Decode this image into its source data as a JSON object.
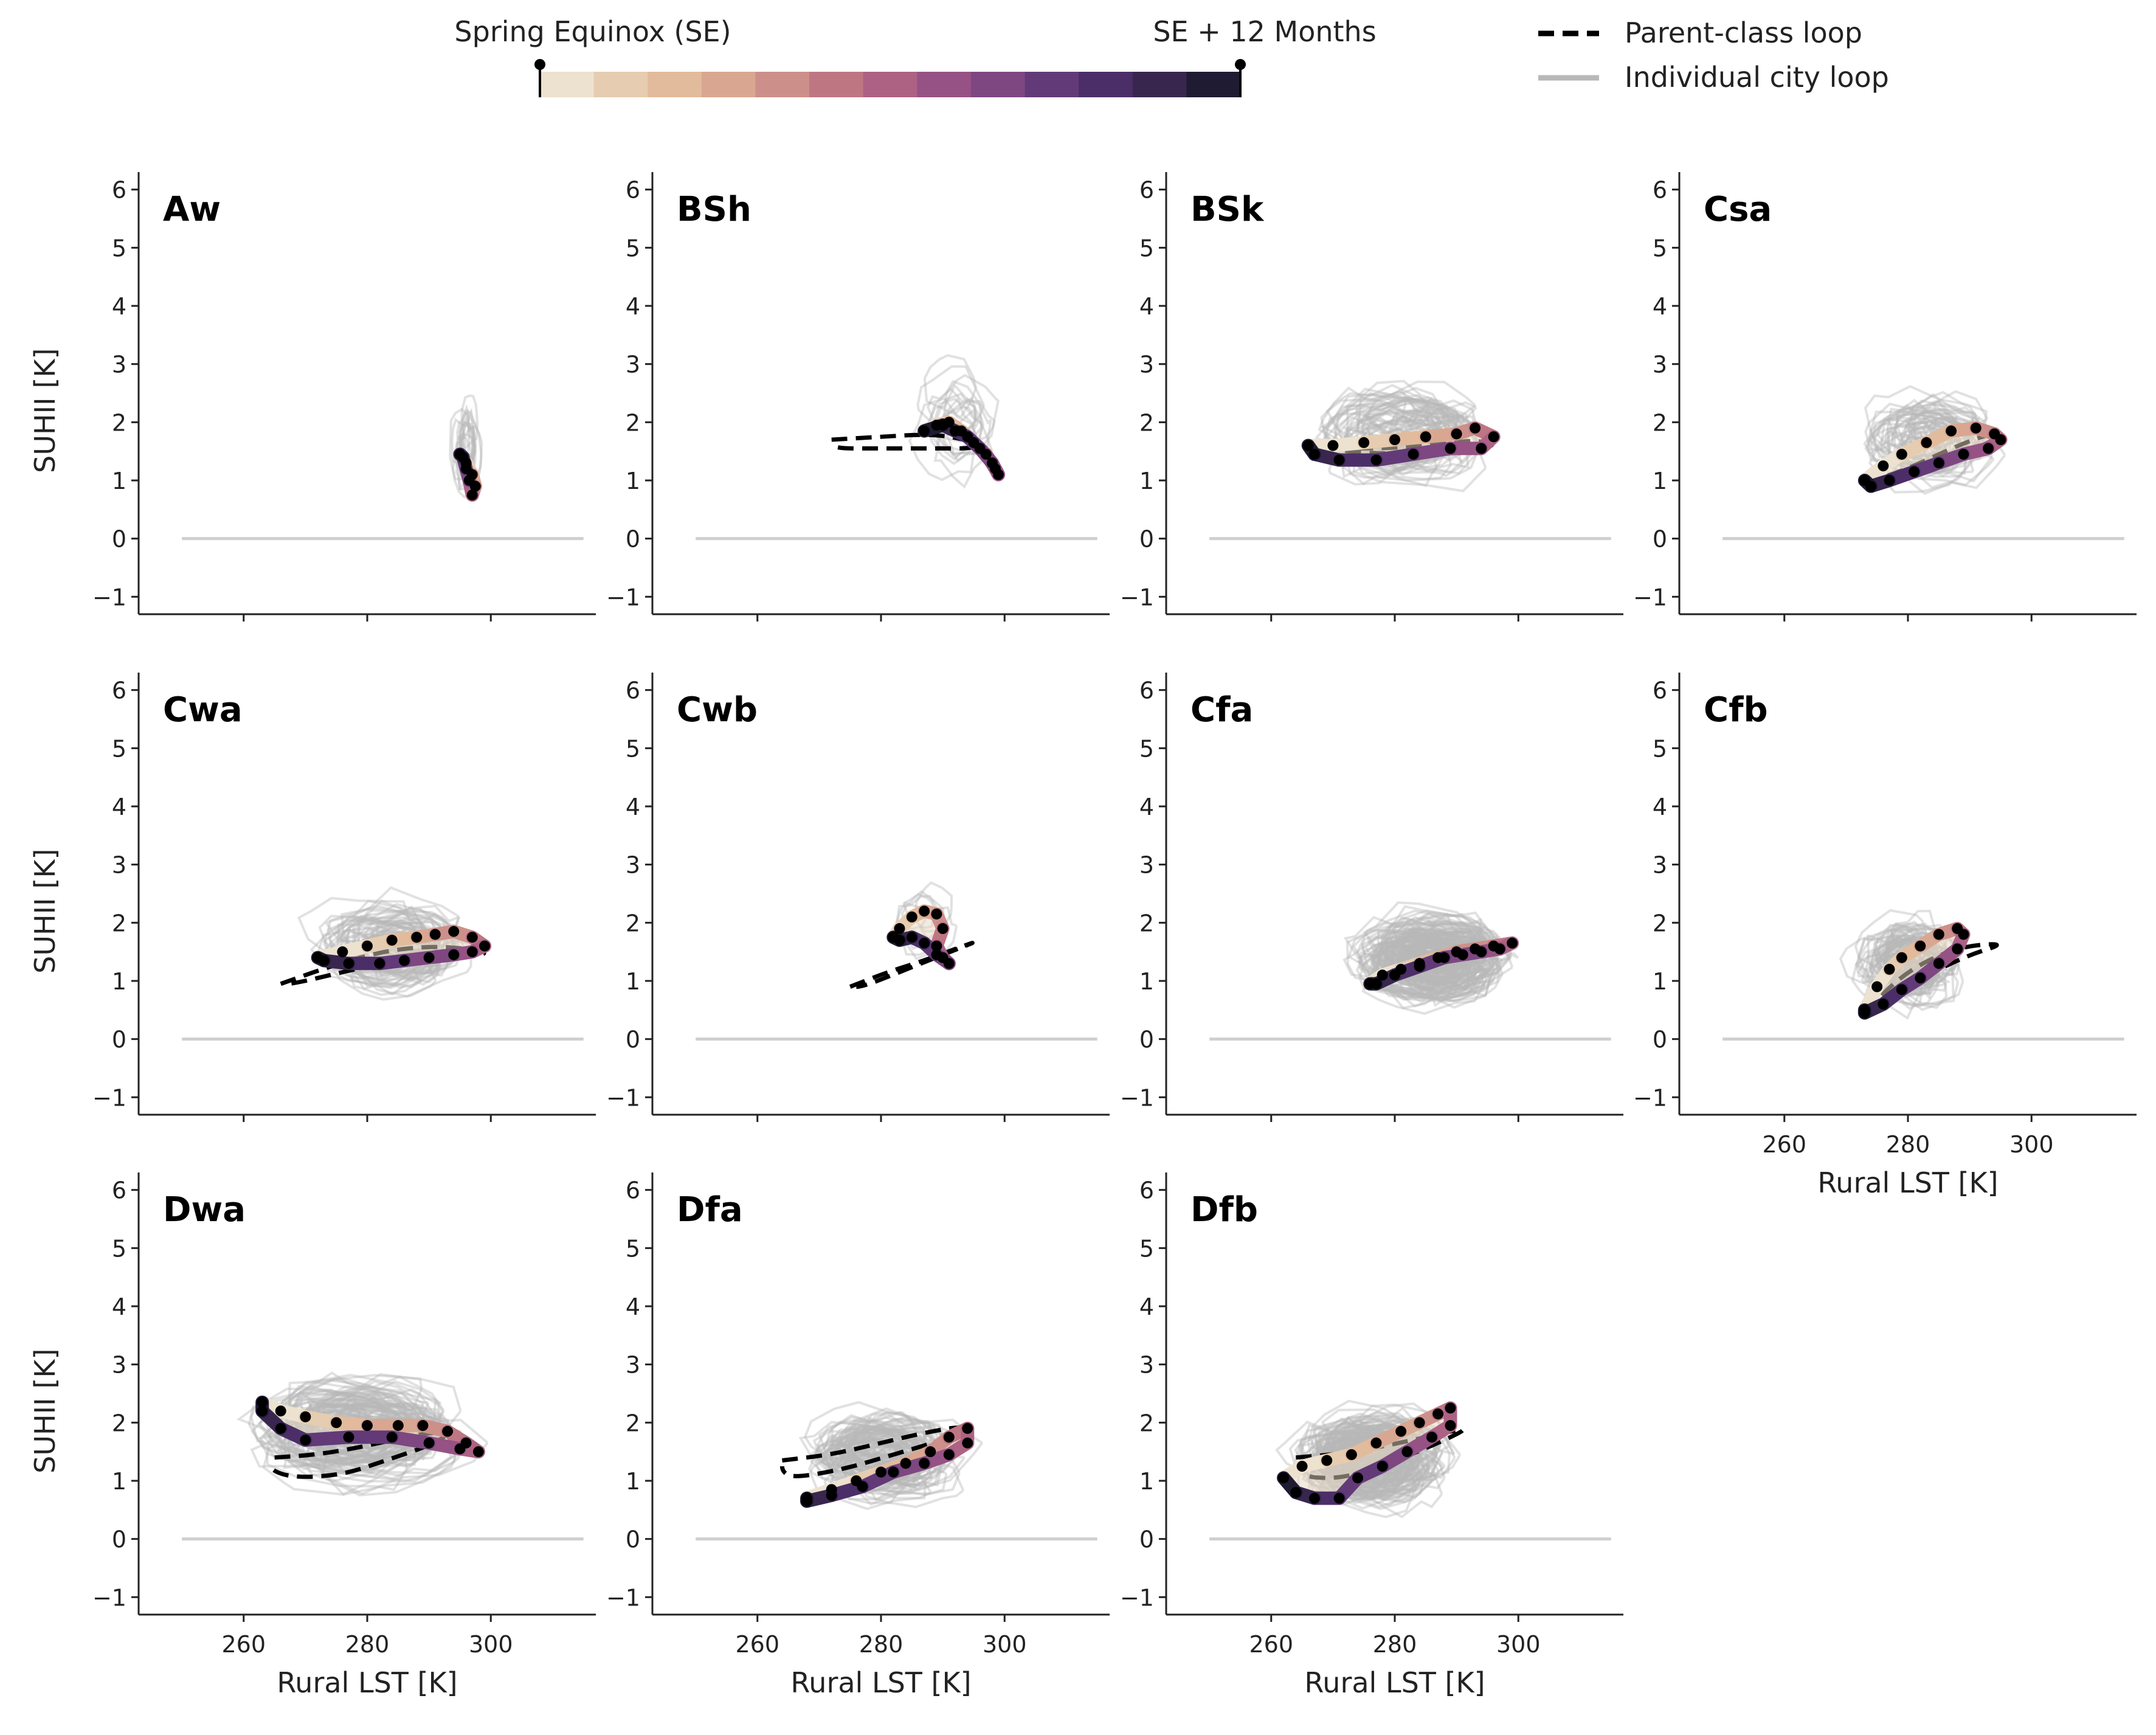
{
  "legend": {
    "colorbar_start_label": "Spring Equinox (SE)",
    "colorbar_end_label": "SE + 12 Months",
    "parent_label": "Parent-class loop",
    "individual_label": "Individual city loop",
    "colorbar_colors": [
      "#ece2cf",
      "#e6ccb0",
      "#e2bb9c",
      "#d9a791",
      "#cd8f8a",
      "#bf7683",
      "#ad6284",
      "#965284",
      "#7e4781",
      "#633a78",
      "#4b2e68",
      "#38264f",
      "#1f1b33"
    ],
    "individual_color": "#b8b8b8",
    "parent_color": "#000000"
  },
  "axes": {
    "xlabel": "Rural LST [K]",
    "ylabel": "SUHII [K]",
    "xticks": [
      "260",
      "280",
      "300"
    ],
    "yticks": [
      "−1",
      "0",
      "1",
      "2",
      "3",
      "4",
      "5",
      "6"
    ]
  },
  "chart_data": {
    "type": "line",
    "xlim": [
      243,
      317
    ],
    "ylim": [
      -1.3,
      6.3
    ],
    "xticks": [
      260,
      280,
      300
    ],
    "yticks": [
      -1,
      0,
      1,
      2,
      3,
      4,
      5,
      6
    ],
    "zero_line": 0,
    "panels": [
      {
        "name": "Aw",
        "city_count": 14,
        "spread": {
          "cx": 296,
          "cy": 1.5,
          "sx": 3,
          "sy": 2.5
        },
        "class_loop": [
          [
            295,
            1.45
          ],
          [
            296,
            1.3
          ],
          [
            297,
            1.1
          ],
          [
            297.5,
            0.9
          ],
          [
            297,
            0.75
          ],
          [
            296.5,
            1.0
          ],
          [
            296,
            1.2
          ],
          [
            295.5,
            1.4
          ]
        ],
        "parent_loop": []
      },
      {
        "name": "BSh",
        "city_count": 14,
        "spread": {
          "cx": 292,
          "cy": 2.0,
          "sx": 8,
          "sy": 2.4
        },
        "class_loop": [
          [
            287,
            1.85
          ],
          [
            289,
            1.95
          ],
          [
            291,
            2.0
          ],
          [
            293,
            1.85
          ],
          [
            295,
            1.65
          ],
          [
            297,
            1.45
          ],
          [
            298.5,
            1.2
          ],
          [
            299,
            1.1
          ],
          [
            298,
            1.3
          ],
          [
            296,
            1.55
          ],
          [
            294,
            1.75
          ],
          [
            292,
            1.85
          ],
          [
            290,
            1.95
          ]
        ],
        "parent_loop": [
          [
            272,
            1.7
          ],
          [
            280,
            1.75
          ],
          [
            288,
            1.8
          ],
          [
            294,
            1.7
          ],
          [
            296,
            1.55
          ],
          [
            288,
            1.55
          ],
          [
            280,
            1.55
          ],
          [
            272,
            1.55
          ],
          [
            272,
            1.7
          ]
        ]
      },
      {
        "name": "BSk",
        "city_count": 55,
        "spread": {
          "cx": 282,
          "cy": 1.8,
          "sx": 17,
          "sy": 2.2
        },
        "class_loop": [
          [
            266,
            1.6
          ],
          [
            270,
            1.6
          ],
          [
            275,
            1.65
          ],
          [
            280,
            1.7
          ],
          [
            285,
            1.75
          ],
          [
            290,
            1.8
          ],
          [
            293,
            1.9
          ],
          [
            296,
            1.75
          ],
          [
            294,
            1.55
          ],
          [
            289,
            1.55
          ],
          [
            283,
            1.45
          ],
          [
            277,
            1.35
          ],
          [
            271,
            1.35
          ],
          [
            267,
            1.45
          ]
        ],
        "parent_loop": [
          [
            270,
            1.55
          ],
          [
            278,
            1.55
          ],
          [
            286,
            1.6
          ],
          [
            293,
            1.7
          ],
          [
            297,
            1.6
          ],
          [
            290,
            1.5
          ],
          [
            280,
            1.45
          ],
          [
            272,
            1.5
          ],
          [
            270,
            1.55
          ]
        ]
      },
      {
        "name": "Csa",
        "city_count": 45,
        "spread": {
          "cx": 284,
          "cy": 1.7,
          "sx": 12,
          "sy": 2.0
        },
        "class_loop": [
          [
            273,
            1.0
          ],
          [
            276,
            1.25
          ],
          [
            279,
            1.45
          ],
          [
            283,
            1.65
          ],
          [
            287,
            1.85
          ],
          [
            291,
            1.9
          ],
          [
            294,
            1.8
          ],
          [
            295,
            1.7
          ],
          [
            293,
            1.55
          ],
          [
            289,
            1.45
          ],
          [
            285,
            1.3
          ],
          [
            281,
            1.15
          ],
          [
            277,
            1.0
          ],
          [
            274,
            0.9
          ]
        ],
        "parent_loop": [
          [
            273,
            0.95
          ],
          [
            280,
            1.2
          ],
          [
            287,
            1.55
          ],
          [
            293,
            1.8
          ],
          [
            295,
            1.75
          ],
          [
            289,
            1.45
          ],
          [
            282,
            1.15
          ],
          [
            275,
            0.95
          ],
          [
            273,
            0.95
          ]
        ]
      },
      {
        "name": "Cwa",
        "city_count": 50,
        "spread": {
          "cx": 285,
          "cy": 1.6,
          "sx": 15,
          "sy": 2.0
        },
        "class_loop": [
          [
            272,
            1.4
          ],
          [
            276,
            1.5
          ],
          [
            280,
            1.6
          ],
          [
            284,
            1.7
          ],
          [
            288,
            1.75
          ],
          [
            291,
            1.8
          ],
          [
            294,
            1.85
          ],
          [
            297,
            1.75
          ],
          [
            299,
            1.6
          ],
          [
            297,
            1.5
          ],
          [
            294,
            1.45
          ],
          [
            290,
            1.4
          ],
          [
            286,
            1.35
          ],
          [
            282,
            1.3
          ],
          [
            277,
            1.3
          ],
          [
            273,
            1.35
          ]
        ],
        "parent_loop": [
          [
            266,
            0.95
          ],
          [
            274,
            1.25
          ],
          [
            282,
            1.5
          ],
          [
            290,
            1.6
          ],
          [
            297,
            1.55
          ],
          [
            300,
            1.45
          ],
          [
            292,
            1.45
          ],
          [
            284,
            1.35
          ],
          [
            276,
            1.15
          ],
          [
            268,
            0.95
          ],
          [
            266,
            0.95
          ]
        ]
      },
      {
        "name": "Cwb",
        "city_count": 6,
        "spread": {
          "cx": 287,
          "cy": 2.0,
          "sx": 6,
          "sy": 1.8
        },
        "class_loop": [
          [
            282,
            1.75
          ],
          [
            283,
            1.9
          ],
          [
            285,
            2.1
          ],
          [
            287,
            2.2
          ],
          [
            289,
            2.15
          ],
          [
            290,
            1.9
          ],
          [
            289,
            1.6
          ],
          [
            290,
            1.4
          ],
          [
            291,
            1.3
          ],
          [
            289,
            1.45
          ],
          [
            287,
            1.65
          ],
          [
            285,
            1.75
          ],
          [
            283,
            1.7
          ]
        ],
        "parent_loop": [
          [
            275,
            0.9
          ],
          [
            281,
            1.15
          ],
          [
            287,
            1.35
          ],
          [
            292,
            1.55
          ],
          [
            296,
            1.7
          ],
          [
            290,
            1.45
          ],
          [
            283,
            1.15
          ],
          [
            277,
            0.9
          ],
          [
            275,
            0.9
          ]
        ]
      },
      {
        "name": "Cfa",
        "city_count": 130,
        "spread": {
          "cx": 286,
          "cy": 1.4,
          "sx": 15,
          "sy": 1.9
        },
        "class_loop": [
          [
            276,
            0.95
          ],
          [
            278,
            1.1
          ],
          [
            281,
            1.2
          ],
          [
            284,
            1.3
          ],
          [
            287,
            1.4
          ],
          [
            290,
            1.5
          ],
          [
            293,
            1.55
          ],
          [
            296,
            1.6
          ],
          [
            299,
            1.65
          ],
          [
            297,
            1.55
          ],
          [
            294,
            1.5
          ],
          [
            291,
            1.45
          ],
          [
            288,
            1.4
          ],
          [
            284,
            1.25
          ],
          [
            280,
            1.1
          ],
          [
            277,
            0.95
          ]
        ],
        "parent_loop": [
          [
            276,
            1.0
          ],
          [
            282,
            1.25
          ],
          [
            288,
            1.5
          ],
          [
            294,
            1.65
          ],
          [
            299,
            1.65
          ],
          [
            293,
            1.55
          ],
          [
            287,
            1.4
          ],
          [
            281,
            1.15
          ],
          [
            276,
            1.0
          ]
        ]
      },
      {
        "name": "Cfb",
        "city_count": 70,
        "spread": {
          "cx": 280,
          "cy": 1.3,
          "sx": 10,
          "sy": 1.9
        },
        "class_loop": [
          [
            273,
            0.5
          ],
          [
            275,
            0.9
          ],
          [
            277,
            1.2
          ],
          [
            279,
            1.4
          ],
          [
            282,
            1.6
          ],
          [
            285,
            1.8
          ],
          [
            288,
            1.9
          ],
          [
            289,
            1.8
          ],
          [
            288,
            1.55
          ],
          [
            285,
            1.3
          ],
          [
            282,
            1.05
          ],
          [
            279,
            0.85
          ],
          [
            276,
            0.6
          ],
          [
            273,
            0.45
          ]
        ],
        "parent_loop": [
          [
            273,
            0.45
          ],
          [
            278,
            1.0
          ],
          [
            283,
            1.35
          ],
          [
            289,
            1.6
          ],
          [
            296,
            1.65
          ],
          [
            290,
            1.45
          ],
          [
            284,
            1.15
          ],
          [
            278,
            0.75
          ],
          [
            273,
            0.45
          ]
        ]
      },
      {
        "name": "Dwa",
        "city_count": 90,
        "spread": {
          "cx": 278,
          "cy": 1.9,
          "sx": 20,
          "sy": 2.3
        },
        "class_loop": [
          [
            263,
            2.35
          ],
          [
            266,
            2.2
          ],
          [
            270,
            2.1
          ],
          [
            275,
            2.0
          ],
          [
            280,
            1.95
          ],
          [
            285,
            1.95
          ],
          [
            289,
            1.95
          ],
          [
            293,
            1.85
          ],
          [
            296,
            1.65
          ],
          [
            298,
            1.5
          ],
          [
            295,
            1.55
          ],
          [
            290,
            1.65
          ],
          [
            284,
            1.75
          ],
          [
            277,
            1.75
          ],
          [
            270,
            1.7
          ],
          [
            266,
            1.9
          ],
          [
            263,
            2.2
          ]
        ],
        "parent_loop": [
          [
            265,
            1.4
          ],
          [
            272,
            1.45
          ],
          [
            280,
            1.6
          ],
          [
            288,
            1.8
          ],
          [
            294,
            1.85
          ],
          [
            290,
            1.6
          ],
          [
            283,
            1.35
          ],
          [
            276,
            1.1
          ],
          [
            268,
            1.05
          ],
          [
            264,
            1.2
          ],
          [
            265,
            1.4
          ]
        ]
      },
      {
        "name": "Dfa",
        "city_count": 80,
        "spread": {
          "cx": 280,
          "cy": 1.4,
          "sx": 14,
          "sy": 1.8
        },
        "class_loop": [
          [
            268,
            0.7
          ],
          [
            272,
            0.85
          ],
          [
            276,
            1.0
          ],
          [
            280,
            1.15
          ],
          [
            284,
            1.3
          ],
          [
            288,
            1.5
          ],
          [
            291,
            1.75
          ],
          [
            294,
            1.9
          ],
          [
            294,
            1.65
          ],
          [
            291,
            1.45
          ],
          [
            287,
            1.3
          ],
          [
            282,
            1.15
          ],
          [
            277,
            0.9
          ],
          [
            272,
            0.75
          ],
          [
            268,
            0.65
          ]
        ],
        "parent_loop": [
          [
            264,
            1.35
          ],
          [
            272,
            1.45
          ],
          [
            280,
            1.65
          ],
          [
            288,
            1.85
          ],
          [
            294,
            1.95
          ],
          [
            290,
            1.7
          ],
          [
            282,
            1.45
          ],
          [
            274,
            1.2
          ],
          [
            266,
            1.05
          ],
          [
            264,
            1.15
          ],
          [
            264,
            1.35
          ]
        ]
      },
      {
        "name": "Dfb",
        "city_count": 130,
        "spread": {
          "cx": 276,
          "cy": 1.4,
          "sx": 14,
          "sy": 2.0
        },
        "class_loop": [
          [
            262,
            1.05
          ],
          [
            265,
            1.25
          ],
          [
            269,
            1.35
          ],
          [
            273,
            1.45
          ],
          [
            277,
            1.65
          ],
          [
            281,
            1.85
          ],
          [
            284,
            2.0
          ],
          [
            287,
            2.15
          ],
          [
            289,
            2.25
          ],
          [
            289,
            1.95
          ],
          [
            286,
            1.75
          ],
          [
            282,
            1.5
          ],
          [
            278,
            1.25
          ],
          [
            274,
            1.05
          ],
          [
            271,
            0.7
          ],
          [
            267,
            0.7
          ],
          [
            264,
            0.8
          ]
        ],
        "parent_loop": [
          [
            264,
            1.4
          ],
          [
            270,
            1.45
          ],
          [
            276,
            1.55
          ],
          [
            283,
            1.7
          ],
          [
            289,
            1.85
          ],
          [
            292,
            1.9
          ],
          [
            286,
            1.6
          ],
          [
            279,
            1.3
          ],
          [
            272,
            1.05
          ],
          [
            266,
            1.05
          ],
          [
            264,
            1.2
          ],
          [
            264,
            1.4
          ]
        ]
      }
    ]
  }
}
